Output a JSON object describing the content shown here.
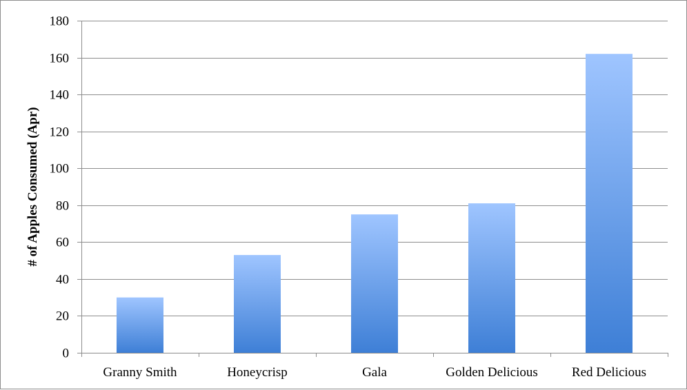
{
  "chart_data": {
    "type": "bar",
    "categories": [
      "Granny Smith",
      "Honeycrisp",
      "Gala",
      "Golden Delicious",
      "Red Delicious"
    ],
    "values": [
      30,
      53,
      75,
      81,
      162
    ],
    "title": "",
    "xlabel": "",
    "ylabel": "# of Apples Consumed (Apr)",
    "ylim": [
      0,
      180
    ],
    "yticks": [
      0,
      20,
      40,
      60,
      80,
      100,
      120,
      140,
      160,
      180
    ],
    "grid": true,
    "legend": "none",
    "colors": {
      "bar_top": "#9fc5ff",
      "bar_bottom": "#3e7fd6",
      "grid": "#8c8c8c",
      "axis": "#8c8c8c"
    }
  }
}
